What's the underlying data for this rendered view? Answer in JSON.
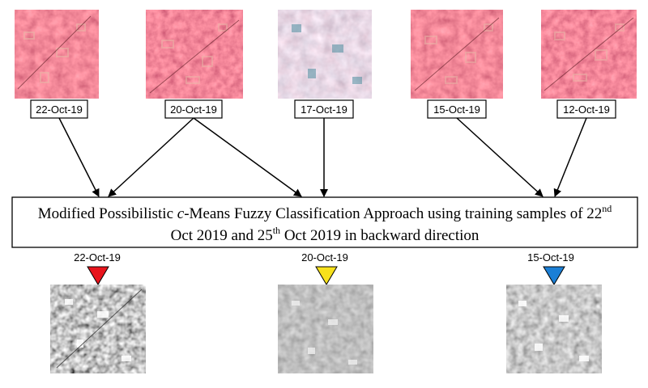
{
  "inputs": [
    {
      "date": "22-Oct-19",
      "tone": "red"
    },
    {
      "date": "20-Oct-19",
      "tone": "red"
    },
    {
      "date": "17-Oct-19",
      "tone": "hazy"
    },
    {
      "date": "15-Oct-19",
      "tone": "red"
    },
    {
      "date": "12-Oct-19",
      "tone": "red"
    }
  ],
  "process": {
    "line1_pre": "Modified Possibilistic ",
    "line1_italic": "c",
    "line1_post": "-Means Fuzzy Classification Approach using training samples of 22",
    "line1_sup": "nd",
    "line2_pre": "Oct 2019 and 25",
    "line2_sup": "th",
    "line2_post": " Oct 2019 in backward direction"
  },
  "outputs": [
    {
      "date": "22-Oct-19",
      "marker_color": "#e8141c",
      "contrast": "high"
    },
    {
      "date": "20-Oct-19",
      "marker_color": "#f7e11b",
      "contrast": "low"
    },
    {
      "date": "15-Oct-19",
      "marker_color": "#1b7fd6",
      "contrast": "medium"
    }
  ],
  "colors": {
    "false_color_red": "#c8283e",
    "hazy_tint": "#b0a0b8"
  }
}
